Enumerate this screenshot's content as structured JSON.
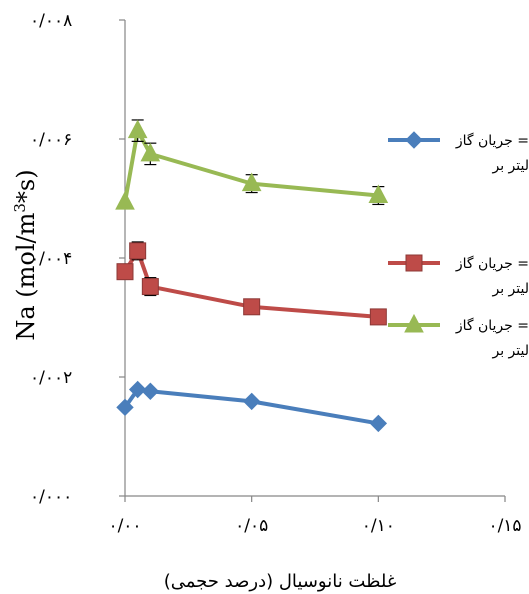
{
  "chart_data": {
    "type": "line",
    "title": "",
    "xlabel": "غلظت نانوسیال (درصد حجمی)",
    "ylabel_text": "Na (mol/m",
    "ylabel_sup": "3",
    "ylabel_tail": "*s)",
    "xlim": [
      0,
      0.15
    ],
    "ylim": [
      0,
      0.008
    ],
    "x_ticks": [
      {
        "value": 0.0,
        "label": "۰/۰۰"
      },
      {
        "value": 0.05,
        "label": "۰/۰۵"
      },
      {
        "value": 0.1,
        "label": "۰/۱۰"
      },
      {
        "value": 0.15,
        "label": "۰/۱۵"
      }
    ],
    "y_ticks": [
      {
        "value": 0.0,
        "label": "۰/۰۰۰"
      },
      {
        "value": 0.002,
        "label": "۰/۰۰۲"
      },
      {
        "value": 0.004,
        "label": "۰/۰۰۴"
      },
      {
        "value": 0.006,
        "label": "۰/۰۰۶"
      },
      {
        "value": 0.008,
        "label": "۰/۰۰۸"
      }
    ],
    "grid": false,
    "legend_position": "right",
    "series": [
      {
        "legend_line1": "جریان گاز =",
        "legend_line2": "لیتر بر",
        "color": "#4a7ebb",
        "marker": "diamond",
        "x": [
          0.0,
          0.005,
          0.01,
          0.05,
          0.1
        ],
        "y": [
          0.00149,
          0.00179,
          0.00176,
          0.00159,
          0.00122
        ],
        "err": [
          0,
          0,
          0,
          0,
          0
        ]
      },
      {
        "legend_line1": "جریان گاز =",
        "legend_line2": "لیتر بر",
        "color": "#be4b48",
        "marker": "square",
        "x": [
          0.0,
          0.005,
          0.01,
          0.05,
          0.1
        ],
        "y": [
          0.00377,
          0.00412,
          0.00352,
          0.00318,
          0.00301
        ],
        "err": [
          0,
          0.00015,
          0.00015,
          0,
          0
        ]
      },
      {
        "legend_line1": "جریان گاز =",
        "legend_line2": "لیتر بر",
        "color": "#98b954",
        "marker": "triangle",
        "x": [
          0.0,
          0.005,
          0.01,
          0.05,
          0.1
        ],
        "y": [
          0.00494,
          0.00614,
          0.00575,
          0.00525,
          0.00505
        ],
        "err": [
          0,
          0.00018,
          0.00018,
          0.00015,
          0.00015
        ]
      }
    ]
  }
}
